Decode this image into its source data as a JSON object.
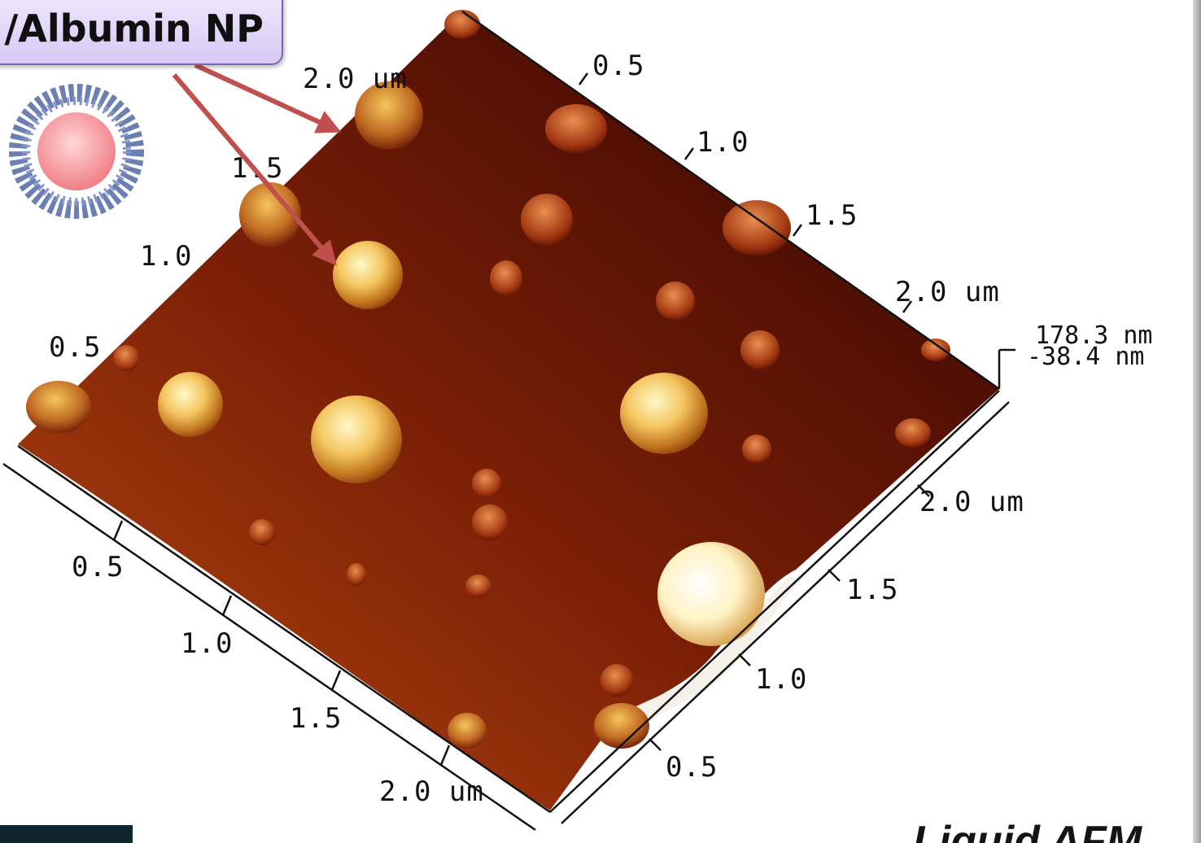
{
  "label_box": {
    "text": "/Albumin NP"
  },
  "caption": {
    "text": "Liquid AFM"
  },
  "height_scale": {
    "max": "178.3 nm",
    "min": "-38.4 nm"
  },
  "axis_ticks": {
    "back_left": [
      "0.5",
      "1.0",
      "1.5",
      "2.0 um"
    ],
    "top_right": [
      "0.5",
      "1.0",
      "1.5",
      "2.0 um"
    ],
    "front_left": [
      "0.5",
      "1.0",
      "1.5",
      "2.0 um"
    ],
    "front_right": [
      "0.5",
      "1.0",
      "1.5",
      "2.0 um"
    ]
  },
  "colors": {
    "surface_dark": "#3a0505",
    "surface_mid": "#8a2a08",
    "surface_light": "#b54a14",
    "particle_highlight": "#fff0a0",
    "arrow": "#c0504d"
  }
}
